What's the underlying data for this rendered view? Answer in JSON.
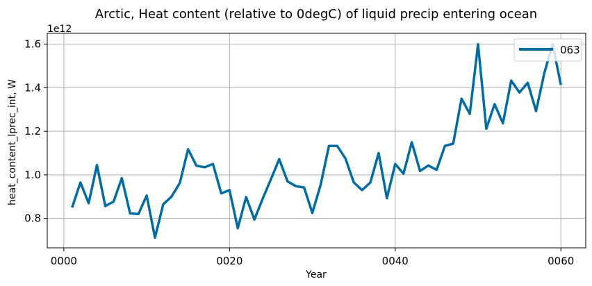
{
  "chart_data": {
    "type": "line",
    "title": "Arctic, Heat content (relative to 0degC) of liquid precip entering ocean",
    "xlabel": "Year",
    "ylabel": "heat_content_lprec_int, W",
    "offset_label": "1e12",
    "xlim": [
      -2,
      63
    ],
    "ylim": [
      0.665,
      1.65
    ],
    "x_ticks": [
      0,
      20,
      40,
      60
    ],
    "x_tick_labels": [
      "0000",
      "0020",
      "0040",
      "0060"
    ],
    "y_ticks": [
      0.8,
      1.0,
      1.2,
      1.4,
      1.6
    ],
    "y_tick_labels": [
      "0.8",
      "1.0",
      "1.2",
      "1.4",
      "1.6"
    ],
    "grid": true,
    "legend_position": "top-right",
    "series": [
      {
        "name": "063",
        "color": "#006ba4",
        "x": [
          1,
          2,
          3,
          4,
          5,
          6,
          7,
          8,
          9,
          10,
          11,
          12,
          13,
          14,
          15,
          16,
          17,
          18,
          19,
          20,
          21,
          22,
          23,
          24,
          25,
          26,
          27,
          28,
          29,
          30,
          31,
          32,
          33,
          34,
          35,
          36,
          37,
          38,
          39,
          40,
          41,
          42,
          43,
          44,
          45,
          46,
          47,
          48,
          49,
          50,
          51,
          52,
          53,
          54,
          55,
          56,
          57,
          58,
          59,
          60
        ],
        "values": [
          0.85,
          0.965,
          0.87,
          1.045,
          0.857,
          0.877,
          0.985,
          0.823,
          0.82,
          0.905,
          0.712,
          0.865,
          0.9,
          0.963,
          1.118,
          1.042,
          1.035,
          1.05,
          0.915,
          0.93,
          0.755,
          0.898,
          0.795,
          0.89,
          0.98,
          1.072,
          0.97,
          0.948,
          0.942,
          0.825,
          0.955,
          1.133,
          1.133,
          1.075,
          0.965,
          0.93,
          0.965,
          1.1,
          0.893,
          1.05,
          1.005,
          1.15,
          1.018,
          1.043,
          1.023,
          1.133,
          1.143,
          1.35,
          1.28,
          1.6,
          1.212,
          1.325,
          1.237,
          1.433,
          1.378,
          1.423,
          1.293,
          1.468,
          1.6,
          1.413
        ]
      }
    ]
  }
}
